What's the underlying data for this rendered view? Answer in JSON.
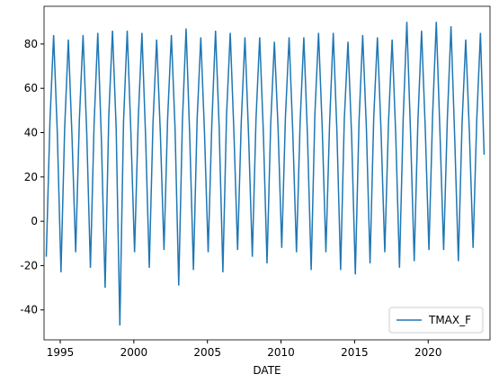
{
  "chart_data": {
    "type": "line",
    "x_label": "DATE",
    "x": [
      1994.05,
      1994.3,
      1994.55,
      1994.8,
      1995.05,
      1995.3,
      1995.55,
      1995.8,
      1996.05,
      1996.3,
      1996.55,
      1996.8,
      1997.05,
      1997.3,
      1997.55,
      1997.8,
      1998.05,
      1998.3,
      1998.55,
      1998.8,
      1999.05,
      1999.3,
      1999.55,
      1999.8,
      2000.05,
      2000.3,
      2000.55,
      2000.8,
      2001.05,
      2001.3,
      2001.55,
      2001.8,
      2002.05,
      2002.3,
      2002.55,
      2002.8,
      2003.05,
      2003.3,
      2003.55,
      2003.8,
      2004.05,
      2004.3,
      2004.55,
      2004.8,
      2005.05,
      2005.3,
      2005.55,
      2005.8,
      2006.05,
      2006.3,
      2006.55,
      2006.8,
      2007.05,
      2007.3,
      2007.55,
      2007.8,
      2008.05,
      2008.3,
      2008.55,
      2008.8,
      2009.05,
      2009.3,
      2009.55,
      2009.8,
      2010.05,
      2010.3,
      2010.55,
      2010.8,
      2011.05,
      2011.3,
      2011.55,
      2011.8,
      2012.05,
      2012.3,
      2012.55,
      2012.8,
      2013.05,
      2013.3,
      2013.55,
      2013.8,
      2014.05,
      2014.3,
      2014.55,
      2014.8,
      2015.05,
      2015.3,
      2015.55,
      2015.8,
      2016.05,
      2016.3,
      2016.55,
      2016.8,
      2017.05,
      2017.3,
      2017.55,
      2017.8,
      2018.05,
      2018.3,
      2018.55,
      2018.8,
      2019.05,
      2019.3,
      2019.55,
      2019.8,
      2020.05,
      2020.3,
      2020.55,
      2020.8,
      2021.05,
      2021.3,
      2021.55,
      2021.8,
      2022.05,
      2022.3,
      2022.55,
      2022.8,
      2023.05,
      2023.3,
      2023.55,
      2023.8
    ],
    "series": [
      {
        "name": "TMAX_F",
        "color": "#1f77b4",
        "values": [
          -16,
          45,
          84,
          40,
          -23,
          42,
          82,
          38,
          -14,
          46,
          84,
          40,
          -21,
          44,
          85,
          36,
          -30,
          48,
          86,
          42,
          -47,
          45,
          86,
          40,
          -14,
          46,
          85,
          38,
          -21,
          44,
          82,
          40,
          -13,
          47,
          84,
          42,
          -29,
          45,
          87,
          38,
          -22,
          46,
          83,
          40,
          -14,
          44,
          86,
          42,
          -23,
          48,
          85,
          40,
          -13,
          45,
          83,
          38,
          -16,
          46,
          83,
          40,
          -19,
          44,
          81,
          42,
          -12,
          47,
          83,
          40,
          -14,
          45,
          83,
          38,
          -22,
          48,
          85,
          42,
          -14,
          44,
          85,
          40,
          -22,
          46,
          81,
          38,
          -24,
          45,
          84,
          42,
          -19,
          47,
          83,
          40,
          -14,
          44,
          82,
          38,
          -21,
          46,
          90,
          40,
          -18,
          45,
          86,
          42,
          -13,
          48,
          90,
          40,
          -13,
          46,
          88,
          38,
          -18,
          44,
          82,
          40,
          -12,
          46,
          85,
          30
        ]
      }
    ],
    "xlim": [
      1993.9,
      2024.2
    ],
    "xticks": [
      1995,
      2000,
      2005,
      2010,
      2015,
      2020
    ],
    "ylim": [
      -53.5,
      97
    ],
    "yticks": [
      -40,
      -20,
      0,
      20,
      40,
      60,
      80
    ],
    "legend": "lower right"
  }
}
